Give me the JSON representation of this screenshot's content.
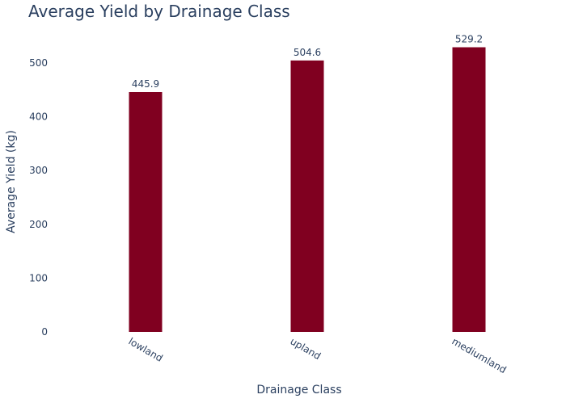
{
  "chart_data": {
    "type": "bar",
    "title": "Average Yield by Drainage Class",
    "xlabel": "Drainage Class",
    "ylabel": "Average Yield (kg)",
    "categories": [
      "lowland",
      "upland",
      "mediumland"
    ],
    "values": [
      445.9,
      504.6,
      529.2
    ],
    "data_labels": [
      "445.9",
      "504.6",
      "529.2"
    ],
    "ylim": [
      0,
      557
    ],
    "yticks": [
      0,
      100,
      200,
      300,
      400,
      500
    ],
    "grid": false,
    "bar_color": "#800020",
    "text_color": "#2a3f5f"
  }
}
